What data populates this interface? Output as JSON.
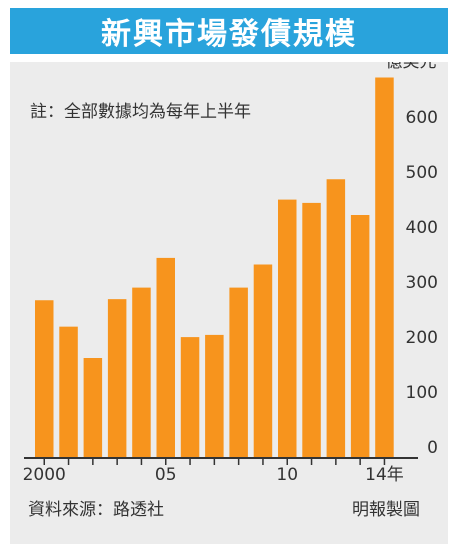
{
  "title": "新興市場發債規模",
  "note": "註：全部數據均為每年上半年",
  "source": "資料來源：路透社",
  "credit": "明報製圖",
  "colors": {
    "bar": "#f7941d",
    "title_bg": "#29a3dc",
    "panel_bg": "#ececec"
  },
  "chart_data": {
    "type": "bar",
    "unit_label": "億美元",
    "categories": [
      "2000",
      "2001",
      "2002",
      "2003",
      "2004",
      "2005",
      "2006",
      "2007",
      "2008",
      "2009",
      "2010",
      "2011",
      "2012",
      "2013",
      "2014"
    ],
    "values": [
      285,
      237,
      180,
      287,
      308,
      362,
      218,
      222,
      308,
      350,
      468,
      462,
      505,
      440,
      690
    ],
    "x_tick_labels": [
      {
        "category": "2000",
        "label": "2000"
      },
      {
        "category": "2005",
        "label": "05"
      },
      {
        "category": "2010",
        "label": "10"
      },
      {
        "category": "2014",
        "label": "14年"
      }
    ],
    "y_ticks": [
      0,
      100,
      200,
      300,
      400,
      500,
      600
    ],
    "ylim": [
      0,
      700
    ],
    "y_axis_side": "right",
    "grid": false
  }
}
